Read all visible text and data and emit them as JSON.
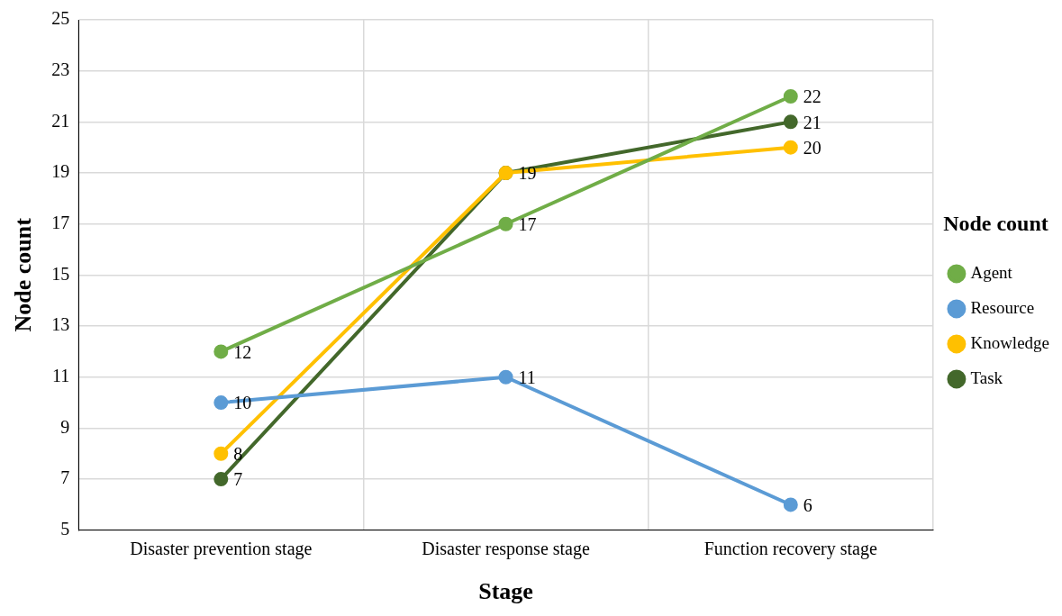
{
  "chart_data": {
    "type": "line",
    "xlabel": "Stage",
    "ylabel": "Node count",
    "legend_title": "Node count",
    "categories": [
      "Disaster prevention stage",
      "Disaster response stage",
      "Function recovery stage"
    ],
    "series": [
      {
        "name": "Agent",
        "color": "#70ad47",
        "values": [
          12,
          17,
          22
        ],
        "value_labels": [
          "12",
          "17",
          "22"
        ]
      },
      {
        "name": "Resource",
        "color": "#5b9bd5",
        "values": [
          10,
          11,
          6
        ],
        "value_labels": [
          "10",
          "11",
          "6"
        ]
      },
      {
        "name": "Knowledge",
        "color": "#ffc000",
        "values": [
          8,
          19,
          20
        ],
        "value_labels": [
          "8",
          null,
          "20"
        ]
      },
      {
        "name": "Task",
        "color": "#43682b",
        "values": [
          7,
          19,
          21
        ],
        "value_labels": [
          "7",
          "19",
          "21"
        ]
      }
    ],
    "ylim": [
      5,
      25
    ],
    "yticks": [
      5,
      7,
      9,
      11,
      13,
      15,
      17,
      19,
      21,
      23,
      25
    ],
    "grid": true,
    "legend": "right",
    "marker": "circle",
    "line_style": "solid"
  }
}
